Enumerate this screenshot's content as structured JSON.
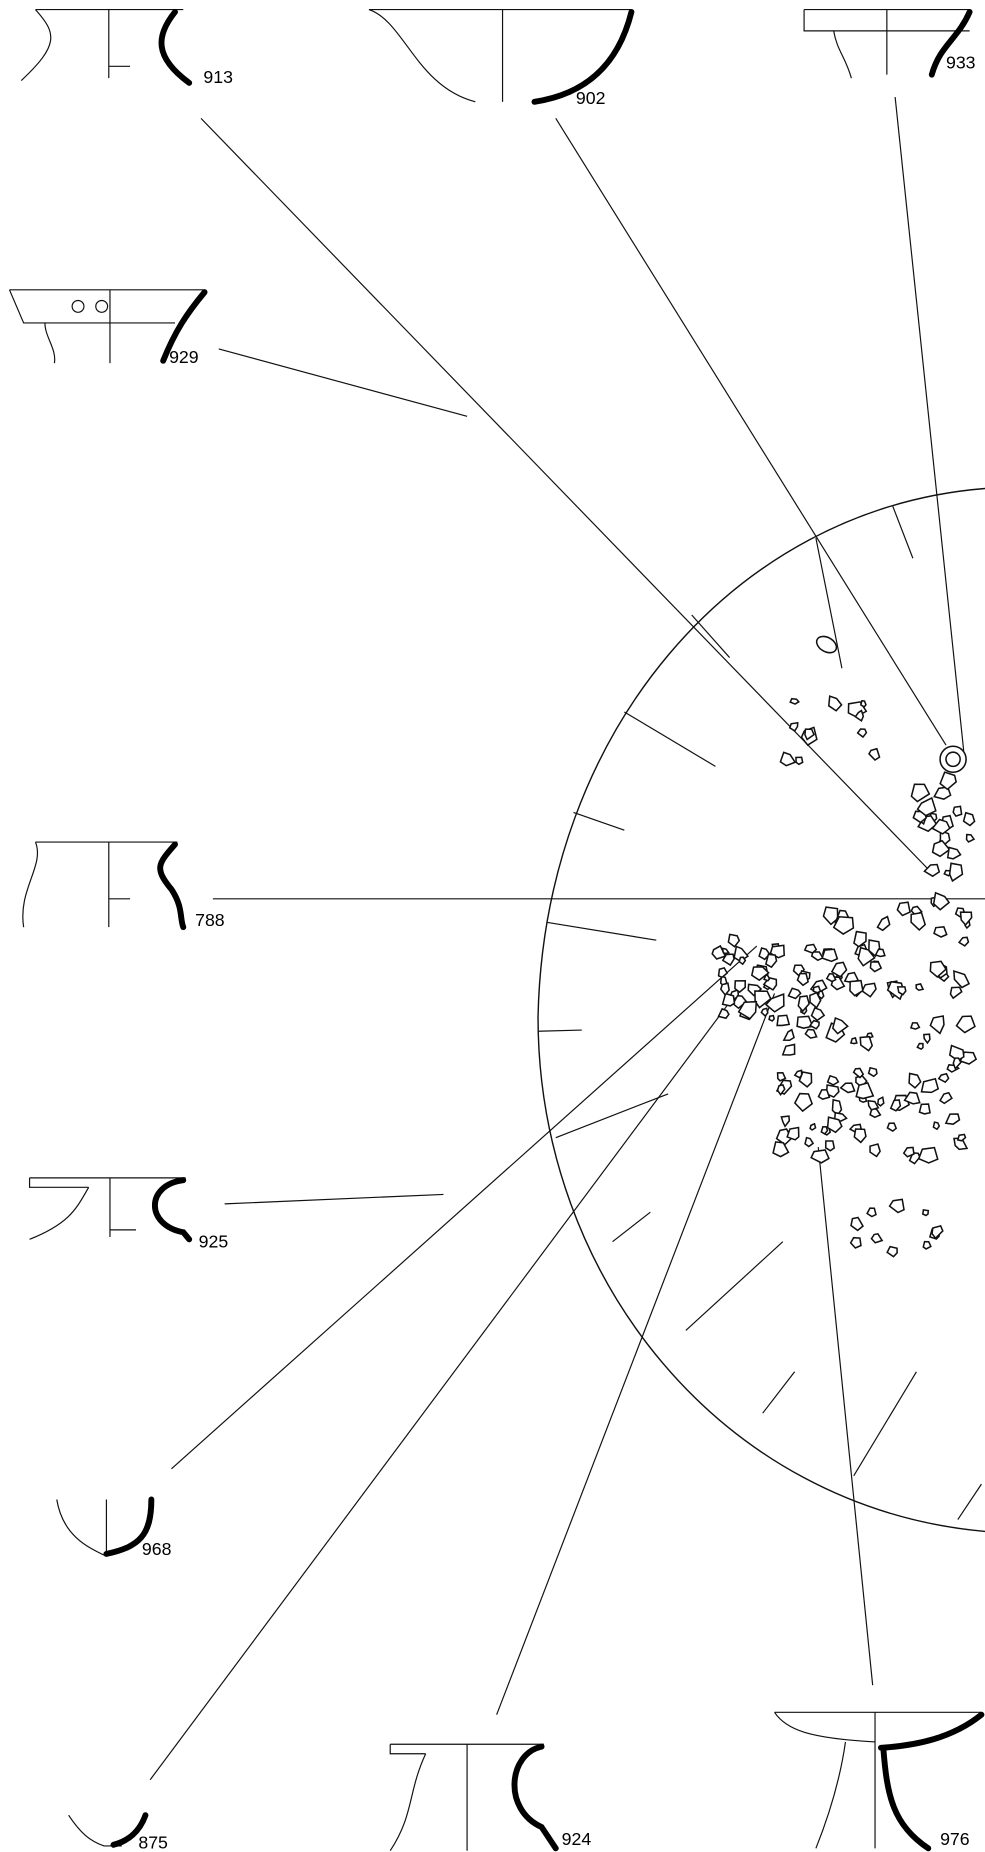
{
  "labels": [
    "913",
    "902",
    "933",
    "929",
    "788",
    "925",
    "968",
    "875",
    "924",
    "976"
  ]
}
